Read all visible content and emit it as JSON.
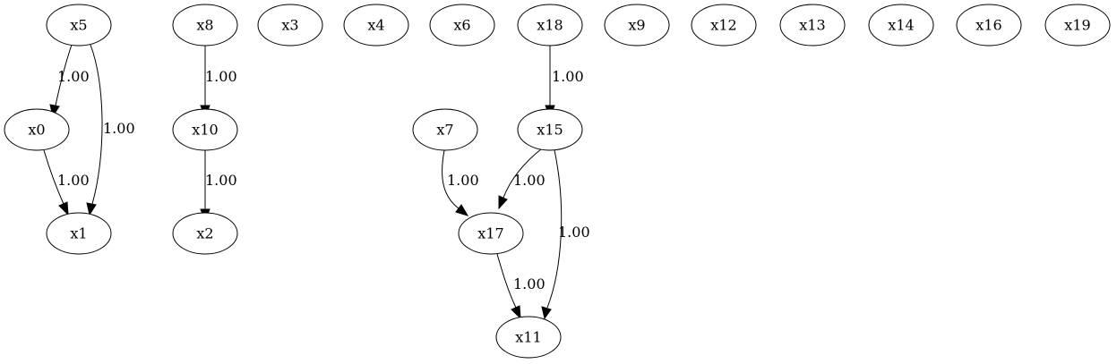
{
  "nodes": [
    {
      "id": "x5",
      "label": "x5"
    },
    {
      "id": "x8",
      "label": "x8"
    },
    {
      "id": "x3",
      "label": "x3"
    },
    {
      "id": "x4",
      "label": "x4"
    },
    {
      "id": "x6",
      "label": "x6"
    },
    {
      "id": "x18",
      "label": "x18"
    },
    {
      "id": "x9",
      "label": "x9"
    },
    {
      "id": "x12",
      "label": "x12"
    },
    {
      "id": "x13",
      "label": "x13"
    },
    {
      "id": "x14",
      "label": "x14"
    },
    {
      "id": "x16",
      "label": "x16"
    },
    {
      "id": "x19",
      "label": "x19"
    },
    {
      "id": "x0",
      "label": "x0"
    },
    {
      "id": "x10",
      "label": "x10"
    },
    {
      "id": "x7",
      "label": "x7"
    },
    {
      "id": "x15",
      "label": "x15"
    },
    {
      "id": "x1",
      "label": "x1"
    },
    {
      "id": "x2",
      "label": "x2"
    },
    {
      "id": "x17",
      "label": "x17"
    },
    {
      "id": "x11",
      "label": "x11"
    }
  ],
  "edges": [
    {
      "from": "x5",
      "to": "x0",
      "label": "1.00"
    },
    {
      "from": "x5",
      "to": "x1",
      "label": "1.00"
    },
    {
      "from": "x0",
      "to": "x1",
      "label": "1.00"
    },
    {
      "from": "x8",
      "to": "x10",
      "label": "1.00"
    },
    {
      "from": "x10",
      "to": "x2",
      "label": "1.00"
    },
    {
      "from": "x18",
      "to": "x15",
      "label": "1.00"
    },
    {
      "from": "x7",
      "to": "x17",
      "label": "1.00"
    },
    {
      "from": "x15",
      "to": "x17",
      "label": "1.00"
    },
    {
      "from": "x15",
      "to": "x11",
      "label": "1.00"
    },
    {
      "from": "x17",
      "to": "x11",
      "label": "1.00"
    }
  ]
}
